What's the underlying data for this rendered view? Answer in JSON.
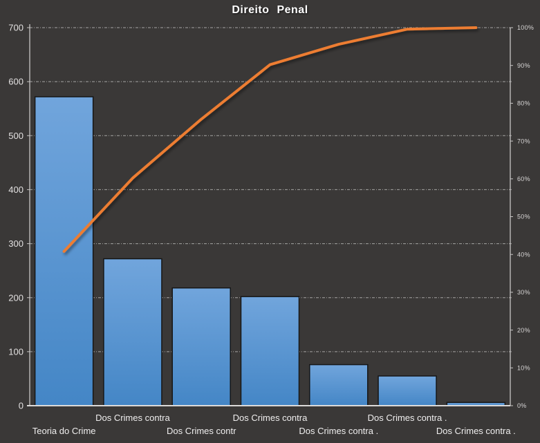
{
  "title": "Direito Penal",
  "chart_data": {
    "type": "pareto",
    "title": "Direito Penal",
    "categories": [
      "Teoria do Crime",
      "Dos Crimes contra",
      "Dos Crimes contr",
      "Dos Crimes contra",
      "Dos Crimes contra .",
      "Dos Crimes contra .",
      "Dos Crimes contra ."
    ],
    "series": [
      {
        "id": "bars",
        "type": "bar",
        "axis": "left",
        "values": [
          572,
          272,
          218,
          202,
          76,
          55,
          6
        ]
      },
      {
        "id": "cumulative-line",
        "type": "line",
        "axis": "right",
        "values": [
          40.8,
          60.2,
          75.8,
          90.2,
          95.6,
          99.6,
          100
        ]
      }
    ],
    "y_left": {
      "min": 0,
      "max": 700,
      "step": 100,
      "tick_labels": [
        "0",
        "100",
        "200",
        "300",
        "400",
        "500",
        "600",
        "700"
      ]
    },
    "y_right": {
      "min": 0,
      "max": 100,
      "step": 10,
      "tick_labels": [
        "0%",
        "10%",
        "20%",
        "30%",
        "40%",
        "50%",
        "60%",
        "70%",
        "80%",
        "90%",
        "100%"
      ]
    },
    "grid": "horizontal-dashed",
    "legend": "none",
    "x_label_rows": [
      2,
      1,
      2,
      1,
      2,
      1,
      2
    ]
  },
  "colors": {
    "background": "#3A3837",
    "bar_top": "#71A5DC",
    "bar_bottom": "#4486C6",
    "bar_border": "#161616",
    "line": "#ED7D31",
    "axis_line": "#C9C7C6",
    "gridline": "rgba(255,255,255,0.55)",
    "tick_label_left": "#E3E1E1",
    "tick_label_right": "#D8D6D6",
    "x_label": "#F0EFEF",
    "title_color": "#FFFFFF"
  }
}
